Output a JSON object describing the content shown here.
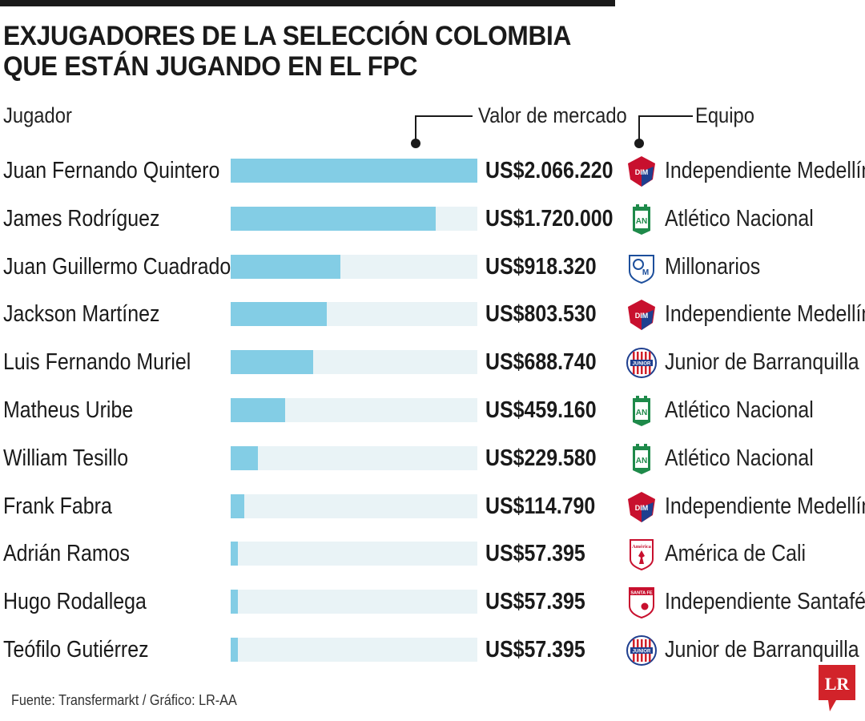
{
  "title_lines": [
    "EXJUGADORES DE LA SELECCIÓN COLOMBIA",
    "QUE ESTÁN JUGANDO EN EL FPC"
  ],
  "headers": {
    "player": "Jugador",
    "value": "Valor de mercado",
    "team": "Equipo"
  },
  "chart_data": {
    "type": "bar",
    "orientation": "horizontal",
    "categories": [
      "Juan Fernando Quintero",
      "James Rodríguez",
      "Juan Guillermo Cuadrado",
      "Jackson Martínez",
      "Luis Fernando Muriel",
      "Matheus Uribe",
      "William Tesillo",
      "Frank Fabra",
      "Adrián Ramos",
      "Hugo Rodallega",
      "Teófilo Gutiérrez"
    ],
    "values": [
      2066220,
      1720000,
      918320,
      803530,
      688740,
      459160,
      229580,
      114790,
      57395,
      57395,
      57395
    ],
    "value_labels": [
      "US$2.066.220",
      "US$1.720.000",
      "US$918.320",
      "US$803.530",
      "US$688.740",
      "US$459.160",
      "US$229.580",
      "US$114.790",
      "US$57.395",
      "US$57.395",
      "US$57.395"
    ],
    "teams": [
      "Independiente Medellín",
      "Atlético Nacional",
      "Millonarios",
      "Independiente Medellín",
      "Junior de Barranquilla",
      "Atlético Nacional",
      "Atlético Nacional",
      "Independiente Medellín",
      "América de Cali",
      "Independiente Santafé",
      "Junior de Barranquilla"
    ],
    "crest_icons": [
      "medellin-crest-icon",
      "nacional-crest-icon",
      "millonarios-crest-icon",
      "medellin-crest-icon",
      "junior-crest-icon",
      "nacional-crest-icon",
      "nacional-crest-icon",
      "medellin-crest-icon",
      "america-crest-icon",
      "santafe-crest-icon",
      "junior-crest-icon"
    ],
    "xlim": [
      0,
      2066220
    ],
    "bar_color": "#83cde5",
    "track_color": "#e9f3f6"
  },
  "crest_labels": {
    "medellin": "DIM",
    "nacional": "AN",
    "millonarios": "M",
    "junior": "JUNIOR",
    "america": "América",
    "santafe": "SANTA FE"
  },
  "source": "Fuente: Transfermarkt / Gráfico: LR-AA",
  "logo_text": "LR",
  "colors": {
    "logo_red": "#d2232a",
    "medellin_red": "#c8102e",
    "medellin_blue": "#1f3f8f",
    "nacional_green": "#1e8a4a",
    "millonarios_blue": "#1d4f9c",
    "junior_red": "#d0202a",
    "america_red": "#c8102e"
  }
}
